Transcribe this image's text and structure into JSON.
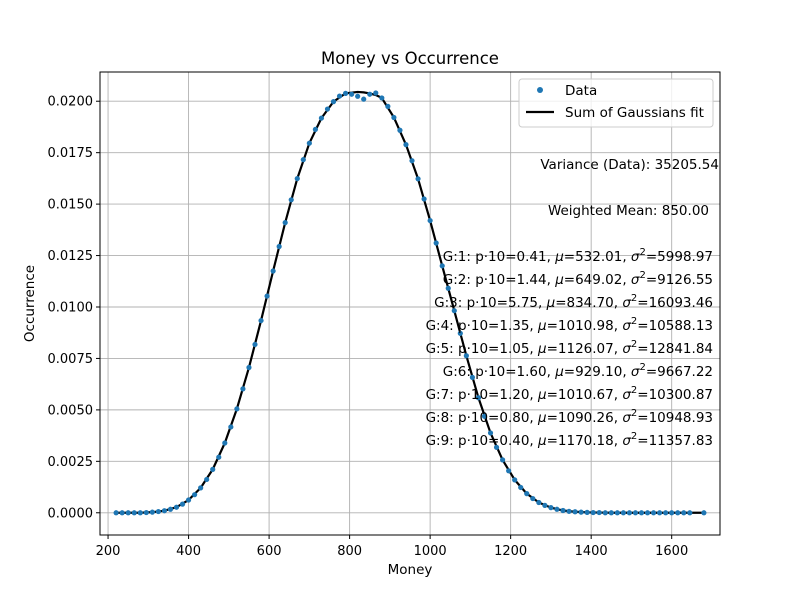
{
  "chart_data": {
    "type": "line",
    "title": "Money vs Occurrence",
    "xlabel": "Money",
    "ylabel": "Occurrence",
    "xlim": [
      180,
      1720
    ],
    "ylim": [
      -0.00108,
      0.02142
    ],
    "xticks": [
      200,
      400,
      600,
      800,
      1000,
      1200,
      1400,
      1600
    ],
    "xtick_labels": [
      "200",
      "400",
      "600",
      "800",
      "1000",
      "1200",
      "1400",
      "1600"
    ],
    "yticks": [
      0.0,
      0.0025,
      0.005,
      0.0075,
      0.01,
      0.0125,
      0.015,
      0.0175,
      0.02
    ],
    "ytick_labels": [
      "0.0000",
      "0.0025",
      "0.0050",
      "0.0075",
      "0.0100",
      "0.0125",
      "0.0150",
      "0.0175",
      "0.0200"
    ],
    "grid": true,
    "legend_position": "top-right",
    "series": [
      {
        "name": "Data",
        "style": "markers",
        "color": "#1f77b4",
        "x": [
          220,
          235,
          250,
          265,
          280,
          295,
          310,
          325,
          340,
          355,
          370,
          385,
          400,
          415,
          430,
          445,
          460,
          475,
          490,
          505,
          520,
          535,
          550,
          565,
          580,
          595,
          610,
          625,
          640,
          655,
          670,
          685,
          700,
          715,
          730,
          745,
          760,
          775,
          790,
          805,
          820,
          835,
          850,
          865,
          880,
          895,
          910,
          925,
          940,
          955,
          970,
          985,
          1000,
          1015,
          1030,
          1045,
          1060,
          1075,
          1090,
          1105,
          1120,
          1135,
          1150,
          1165,
          1180,
          1195,
          1210,
          1225,
          1240,
          1255,
          1270,
          1285,
          1300,
          1315,
          1330,
          1345,
          1360,
          1375,
          1390,
          1405,
          1420,
          1435,
          1450,
          1465,
          1480,
          1495,
          1510,
          1525,
          1540,
          1555,
          1570,
          1585,
          1600,
          1615,
          1630,
          1645,
          1680
        ],
        "y": [
          0.0,
          0.0,
          0.0,
          0.0,
          0.0,
          1e-05,
          3e-05,
          6e-05,
          0.0001,
          0.00017,
          0.00027,
          0.00042,
          0.00062,
          0.00088,
          0.00121,
          0.00162,
          0.00211,
          0.0027,
          0.00339,
          0.00417,
          0.00505,
          0.00602,
          0.00706,
          0.00818,
          0.00934,
          0.01053,
          0.01175,
          0.01294,
          0.0141,
          0.01521,
          0.01624,
          0.01716,
          0.01796,
          0.01863,
          0.01918,
          0.01962,
          0.01998,
          0.02025,
          0.02038,
          0.02034,
          0.02024,
          0.0201,
          0.02034,
          0.0204,
          0.02016,
          0.01975,
          0.01921,
          0.01859,
          0.01789,
          0.01711,
          0.01623,
          0.01525,
          0.0142,
          0.01311,
          0.012,
          0.01091,
          0.00982,
          0.00872,
          0.00763,
          0.00658,
          0.00559,
          0.00469,
          0.00388,
          0.00318,
          0.00257,
          0.00204,
          0.0016,
          0.00123,
          0.00093,
          0.00069,
          0.0005,
          0.00036,
          0.00025,
          0.00017,
          0.00011,
          7e-05,
          5e-05,
          3e-05,
          2e-05,
          1e-05,
          1e-05,
          0.0,
          0.0,
          0.0,
          0.0,
          0.0,
          0.0,
          0.0,
          0.0,
          0.0,
          0.0,
          0.0,
          0.0,
          0.0,
          0.0,
          0.0,
          0.0
        ]
      },
      {
        "name": "Sum of Gaussians fit",
        "style": "line",
        "color": "#000000",
        "x": [
          220,
          250,
          280,
          310,
          340,
          370,
          400,
          430,
          460,
          490,
          520,
          550,
          580,
          610,
          640,
          670,
          700,
          730,
          760,
          790,
          820,
          835,
          850,
          865,
          880,
          910,
          940,
          970,
          1000,
          1030,
          1060,
          1090,
          1120,
          1150,
          1180,
          1210,
          1240,
          1270,
          1300,
          1330,
          1360,
          1390,
          1420,
          1450,
          1480,
          1510,
          1540,
          1570,
          1600,
          1630,
          1680
        ],
        "y": [
          0.0,
          0.0,
          0.0,
          3e-05,
          0.0001,
          0.00027,
          0.00062,
          0.00121,
          0.00211,
          0.00339,
          0.00505,
          0.00706,
          0.00934,
          0.01175,
          0.0141,
          0.01624,
          0.01796,
          0.01918,
          0.01998,
          0.02038,
          0.02045,
          0.02043,
          0.02038,
          0.0203,
          0.02016,
          0.01921,
          0.01789,
          0.01623,
          0.0142,
          0.012,
          0.00982,
          0.00763,
          0.00559,
          0.00388,
          0.00257,
          0.0016,
          0.00093,
          0.0005,
          0.00025,
          0.00011,
          5e-05,
          2e-05,
          1e-05,
          0.0,
          0.0,
          0.0,
          0.0,
          0.0,
          0.0,
          0.0,
          0.0
        ]
      }
    ],
    "annotations": {
      "variance": "Variance (Data): 35205.54",
      "weighted_mean": "Weighted Mean: 850.00",
      "gaussians": [
        {
          "prefix": "G:1: p·10=0.41, ",
          "mu": "532.01",
          "sigma2": "5998.97"
        },
        {
          "prefix": "G:2: p·10=1.44, ",
          "mu": "649.02",
          "sigma2": "9126.55"
        },
        {
          "prefix": "G:3: p·10=5.75, ",
          "mu": "834.70",
          "sigma2": "16093.46"
        },
        {
          "prefix": "G:4: p·10=1.35, ",
          "mu": "1010.98",
          "sigma2": "10588.13"
        },
        {
          "prefix": "G:5: p·10=1.05, ",
          "mu": "1126.07",
          "sigma2": "12841.84"
        },
        {
          "prefix": "G:6: p·10=1.60, ",
          "mu": "929.10",
          "sigma2": "9667.22"
        },
        {
          "prefix": "G:7: p·10=1.20, ",
          "mu": "1010.67",
          "sigma2": "10300.87"
        },
        {
          "prefix": "G:8: p·10=0.80, ",
          "mu": "1090.26",
          "sigma2": "10948.93"
        },
        {
          "prefix": "G:9: p·10=0.40, ",
          "mu": "1170.18",
          "sigma2": "11357.83"
        }
      ]
    }
  }
}
